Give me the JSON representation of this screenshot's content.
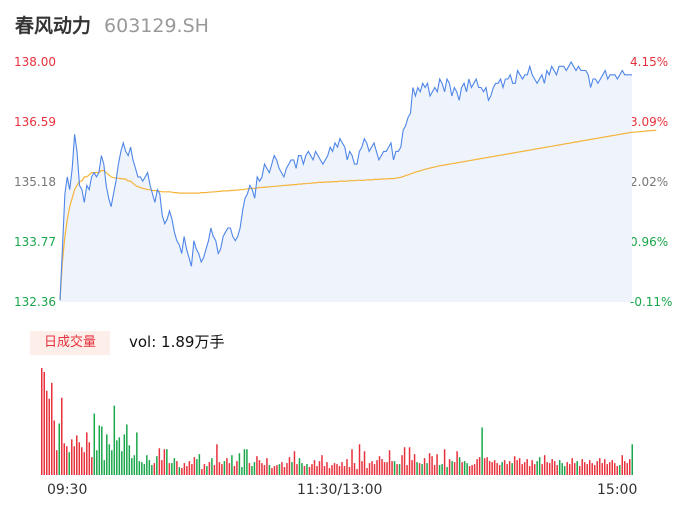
{
  "header": {
    "stock_name": "春风动力",
    "stock_code": "603129.SH"
  },
  "volume_panel": {
    "badge": "日成交量",
    "label": "vol: 1.89万手"
  },
  "colors": {
    "up": "#e8313c",
    "down": "#1aa64a",
    "flat": "#777777",
    "price_line": "#4f86e8",
    "avg_line": "#f5b43c",
    "area_fill": "#eef3fc"
  },
  "chart_data": [
    {
      "type": "line",
      "title": "",
      "y_left_ticks": [
        "138.00",
        "136.59",
        "135.18",
        "133.77",
        "132.36"
      ],
      "y_right_ticks": [
        "4.15%",
        "3.09%",
        "2.02%",
        "0.96%",
        "-0.11%"
      ],
      "ylim": [
        132.36,
        138.0
      ],
      "x_ticks": [
        "09:30",
        "11:30/13:00",
        "15:00"
      ],
      "grid": false,
      "series": [
        {
          "role": "price",
          "values": [
            132.4,
            133.6,
            134.9,
            135.3,
            135.0,
            135.5,
            136.3,
            135.9,
            135.1,
            135.0,
            134.7,
            135.1,
            135.0,
            135.3,
            135.4,
            135.3,
            135.4,
            135.8,
            135.6,
            135.1,
            134.8,
            134.6,
            134.9,
            135.2,
            135.6,
            135.9,
            136.1,
            135.9,
            135.8,
            136.0,
            135.7,
            135.5,
            135.3,
            135.3,
            135.2,
            135.3,
            135.4,
            135.1,
            134.9,
            134.7,
            135.0,
            134.9,
            134.4,
            134.2,
            134.3,
            134.5,
            134.3,
            134.0,
            133.8,
            133.7,
            133.5,
            133.9,
            133.6,
            133.4,
            133.2,
            133.8,
            133.6,
            133.5,
            133.3,
            133.4,
            133.6,
            133.8,
            134.1,
            133.9,
            133.8,
            133.5,
            133.6,
            133.9,
            134.0,
            134.1,
            134.1,
            133.9,
            133.8,
            133.9,
            134.1,
            134.5,
            134.8,
            134.9,
            135.1,
            135.0,
            134.8,
            135.3,
            135.2,
            135.3,
            135.6,
            135.5,
            135.4,
            135.6,
            135.8,
            135.7,
            135.5,
            135.4,
            135.3,
            135.5,
            135.6,
            135.7,
            135.7,
            135.5,
            135.8,
            135.8,
            135.6,
            135.8,
            135.9,
            135.8,
            135.7,
            135.9,
            135.8,
            135.7,
            135.6,
            135.7,
            135.8,
            136.0,
            135.9,
            136.1,
            136.0,
            136.2,
            136.1,
            136.0,
            135.7,
            135.9,
            135.8,
            135.6,
            135.6,
            135.9,
            136.0,
            136.2,
            136.1,
            135.9,
            136.0,
            136.1,
            135.9,
            135.7,
            135.8,
            135.9,
            135.9,
            136.0,
            136.1,
            135.7,
            135.9,
            135.9,
            136.0,
            136.4,
            136.5,
            136.7,
            136.8,
            137.4,
            137.2,
            137.4,
            137.3,
            137.5,
            137.4,
            137.5,
            137.2,
            137.3,
            137.4,
            137.3,
            137.6,
            137.5,
            137.3,
            137.6,
            137.5,
            137.2,
            137.4,
            137.3,
            137.1,
            137.4,
            137.5,
            137.3,
            137.6,
            137.4,
            137.5,
            137.6,
            137.4,
            137.4,
            137.3,
            137.4,
            137.1,
            137.2,
            137.4,
            137.5,
            137.5,
            137.6,
            137.4,
            137.6,
            137.6,
            137.7,
            137.5,
            137.5,
            137.8,
            137.7,
            137.6,
            137.7,
            137.7,
            137.9,
            137.7,
            137.6,
            137.5,
            137.6,
            137.7,
            137.5,
            137.8,
            137.7,
            137.9,
            137.8,
            137.7,
            137.9,
            137.9,
            137.9,
            137.8,
            137.9,
            138.0,
            137.9,
            137.8,
            137.9,
            137.8,
            137.8,
            137.8,
            137.7,
            137.4,
            137.6,
            137.6,
            137.5,
            137.6,
            137.7,
            137.8,
            137.6,
            137.7,
            137.7,
            137.7,
            137.6,
            137.7,
            137.8,
            137.7,
            137.7,
            137.7,
            137.7
          ]
        },
        {
          "role": "average",
          "values": [
            132.4,
            133.3,
            133.9,
            134.3,
            134.6,
            134.8,
            135.0,
            135.1,
            135.2,
            135.2,
            135.3,
            135.3,
            135.35,
            135.4,
            135.4,
            135.4,
            135.4,
            135.45,
            135.45,
            135.4,
            135.35,
            135.3,
            135.28,
            135.27,
            135.27,
            135.26,
            135.25,
            135.25,
            135.2,
            135.2,
            135.15,
            135.1,
            135.07,
            135.05,
            135.03,
            135.02,
            135.0,
            135.0,
            134.98,
            134.98,
            134.97,
            134.96,
            134.95,
            134.95,
            134.95,
            134.95,
            134.94,
            134.93,
            134.93,
            134.92,
            134.92,
            134.92,
            134.92,
            134.92,
            134.92,
            134.92,
            134.92,
            134.92,
            134.93,
            134.93,
            134.93,
            134.94,
            134.94,
            134.95,
            134.95,
            134.96,
            134.96,
            134.97,
            134.97,
            134.97,
            134.98,
            134.98,
            134.99,
            134.99,
            135.0,
            135.0,
            135.01,
            135.02,
            135.02,
            135.03,
            135.03,
            135.04,
            135.05,
            135.05,
            135.06,
            135.06,
            135.07,
            135.07,
            135.08,
            135.08,
            135.09,
            135.09,
            135.1,
            135.1,
            135.11,
            135.11,
            135.12,
            135.12,
            135.13,
            135.13,
            135.14,
            135.14,
            135.15,
            135.15,
            135.16,
            135.16,
            135.17,
            135.17,
            135.17,
            135.18,
            135.18,
            135.18,
            135.19,
            135.19,
            135.19,
            135.2,
            135.2,
            135.2,
            135.2,
            135.21,
            135.21,
            135.21,
            135.22,
            135.22,
            135.22,
            135.22,
            135.23,
            135.23,
            135.23,
            135.24,
            135.24,
            135.24,
            135.25,
            135.25,
            135.25,
            135.26,
            135.26,
            135.26,
            135.27,
            135.28,
            135.29,
            135.31,
            135.33,
            135.35,
            135.37,
            135.39,
            135.41,
            135.43,
            135.44,
            135.46,
            135.48,
            135.49,
            135.51,
            135.52,
            135.53,
            135.55,
            135.56,
            135.57,
            135.58,
            135.59,
            135.6,
            135.61,
            135.62,
            135.63,
            135.64,
            135.65,
            135.66,
            135.67,
            135.68,
            135.69,
            135.7,
            135.71,
            135.72,
            135.73,
            135.74,
            135.75,
            135.76,
            135.77,
            135.78,
            135.79,
            135.8,
            135.81,
            135.82,
            135.83,
            135.84,
            135.85,
            135.86,
            135.87,
            135.88,
            135.89,
            135.9,
            135.91,
            135.92,
            135.93,
            135.94,
            135.95,
            135.96,
            135.97,
            135.98,
            135.99,
            136.0,
            136.01,
            136.02,
            136.03,
            136.04,
            136.05,
            136.06,
            136.07,
            136.08,
            136.09,
            136.1,
            136.11,
            136.12,
            136.13,
            136.14,
            136.15,
            136.16,
            136.17,
            136.18,
            136.19,
            136.2,
            136.21,
            136.22,
            136.23,
            136.24,
            136.25,
            136.26,
            136.27,
            136.28,
            136.29,
            136.3,
            136.31,
            136.32,
            136.33,
            136.34,
            136.35,
            136.35,
            136.36,
            136.36,
            136.37,
            136.37,
            136.38,
            136.38,
            136.39,
            136.39,
            136.4
          ]
        }
      ]
    },
    {
      "type": "bar",
      "title": "",
      "volume": [
        108,
        104,
        85,
        77,
        93,
        55,
        25,
        52,
        78,
        32,
        29,
        23,
        36,
        29,
        40,
        33,
        28,
        23,
        43,
        33,
        18,
        62,
        25,
        50,
        49,
        15,
        41,
        31,
        25,
        70,
        35,
        38,
        24,
        41,
        51,
        30,
        17,
        20,
        43,
        14,
        13,
        11,
        20,
        15,
        10,
        12,
        19,
        27,
        15,
        26,
        26,
        12,
        12,
        17,
        14,
        8,
        7,
        12,
        9,
        14,
        11,
        18,
        16,
        21,
        6,
        11,
        9,
        13,
        17,
        10,
        31,
        13,
        11,
        14,
        17,
        12,
        20,
        9,
        14,
        22,
        8,
        26,
        26,
        12,
        9,
        13,
        19,
        15,
        12,
        10,
        17,
        10,
        7,
        9,
        10,
        11,
        13,
        8,
        12,
        18,
        13,
        24,
        11,
        17,
        12,
        9,
        11,
        8,
        11,
        15,
        9,
        14,
        20,
        9,
        13,
        7,
        10,
        12,
        11,
        9,
        13,
        9,
        16,
        8,
        26,
        12,
        6,
        31,
        14,
        24,
        7,
        12,
        14,
        11,
        15,
        19,
        16,
        13,
        13,
        25,
        14,
        14,
        11,
        11,
        20,
        28,
        10,
        28,
        15,
        21,
        13,
        12,
        11,
        17,
        12,
        22,
        19,
        10,
        21,
        10,
        11,
        26,
        8,
        16,
        14,
        13,
        24,
        18,
        13,
        14,
        12,
        9,
        10,
        11,
        16,
        18,
        48,
        17,
        18,
        14,
        13,
        15,
        12,
        10,
        13,
        15,
        11,
        14,
        12,
        19,
        15,
        17,
        11,
        13,
        16,
        9,
        15,
        11,
        14,
        18,
        11,
        20,
        13,
        12,
        16,
        14,
        10,
        15,
        12,
        9,
        13,
        11,
        17,
        12,
        14,
        9,
        16,
        13,
        11,
        15,
        12,
        10,
        14,
        17,
        12,
        16,
        11,
        13,
        15,
        12,
        9,
        10,
        20,
        14,
        12,
        16,
        31
      ],
      "direction": [
        1,
        1,
        1,
        1,
        1,
        1,
        1,
        -1,
        1,
        1,
        1,
        -1,
        1,
        1,
        1,
        1,
        1,
        1,
        1,
        1,
        1,
        -1,
        -1,
        -1,
        -1,
        -1,
        -1,
        -1,
        -1,
        -1,
        -1,
        -1,
        -1,
        -1,
        -1,
        -1,
        -1,
        -1,
        -1,
        -1,
        -1,
        -1,
        -1,
        -1,
        -1,
        1,
        -1,
        1,
        1,
        1,
        -1,
        1,
        -1,
        -1,
        1,
        -1,
        1,
        1,
        1,
        1,
        1,
        1,
        -1,
        -1,
        1,
        1,
        -1,
        1,
        -1,
        1,
        1,
        1,
        1,
        -1,
        1,
        1,
        -1,
        1,
        1,
        -1,
        -1,
        -1,
        -1,
        1,
        -1,
        -1,
        1,
        1,
        1,
        1,
        1,
        -1,
        1,
        1,
        1,
        -1,
        1,
        1,
        1,
        1,
        -1,
        1,
        1,
        -1,
        -1,
        1,
        -1,
        1,
        1,
        1,
        1,
        1,
        1,
        1,
        1,
        1,
        1,
        1,
        1,
        1,
        1,
        1,
        1,
        1,
        1,
        1,
        1,
        1,
        1,
        1,
        1,
        1,
        1,
        1,
        1,
        1,
        1,
        1,
        1,
        1,
        1,
        -1,
        1,
        -1,
        1,
        1,
        1,
        1,
        1,
        1,
        -1,
        1,
        -1,
        1,
        -1,
        1,
        1,
        1,
        1,
        -1,
        -1,
        1,
        -1,
        1,
        -1,
        1,
        1,
        -1,
        1,
        -1,
        -1,
        1,
        1,
        1,
        1,
        1,
        -1,
        1,
        1,
        1,
        1,
        1,
        1,
        1,
        -1,
        1,
        1,
        1,
        -1,
        1,
        1,
        1,
        1,
        1,
        1,
        1,
        1,
        1,
        -1,
        -1,
        1,
        1,
        1,
        1,
        1,
        1,
        1,
        -1,
        -1,
        -1,
        1,
        1,
        1,
        1,
        -1,
        1,
        1,
        1,
        1,
        1,
        1,
        1,
        1,
        1,
        1,
        1,
        1,
        1,
        1,
        1,
        1,
        -1,
        1,
        1,
        1,
        1,
        -1,
        1,
        -1,
        1,
        1,
        1,
        1
      ]
    }
  ]
}
